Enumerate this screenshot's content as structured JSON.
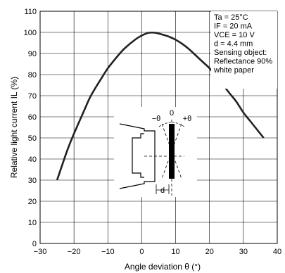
{
  "chart_data": {
    "type": "line",
    "xlabel": "Angle deviation θ (°)",
    "ylabel": "Relative light current IL (%)",
    "xlim": [
      -30,
      40
    ],
    "ylim": [
      0,
      110
    ],
    "xticks": [
      -30,
      -20,
      -10,
      0,
      10,
      20,
      30,
      40
    ],
    "yticks": [
      0,
      10,
      20,
      30,
      40,
      50,
      60,
      70,
      80,
      90,
      100,
      110
    ],
    "grid": true,
    "series": [
      {
        "x": [
          -25,
          -22,
          -20,
          -17,
          -15,
          -12,
          -10,
          -7,
          -5,
          -2,
          0,
          2,
          4,
          6,
          8,
          10,
          12,
          14,
          16,
          18,
          20,
          22,
          24,
          26,
          28,
          30,
          32,
          34,
          36
        ],
        "y": [
          30,
          44,
          52,
          63,
          70,
          78,
          83,
          89,
          92.5,
          96.5,
          98.5,
          99.8,
          99.8,
          99,
          98,
          96.5,
          94.5,
          92,
          89,
          86,
          83,
          79,
          75,
          71,
          67,
          62,
          58,
          54,
          50
        ]
      }
    ],
    "conditions": [
      "Ta = 25°C",
      "IF = 20 mA",
      "VCE = 10 V",
      "d = 4.4 mm",
      "Sensing object:",
      "Reflectance 90%",
      "white paper"
    ],
    "inset_labels": {
      "minus_theta": "−θ",
      "zero": "0",
      "plus_theta": "+θ",
      "d": "d"
    }
  }
}
